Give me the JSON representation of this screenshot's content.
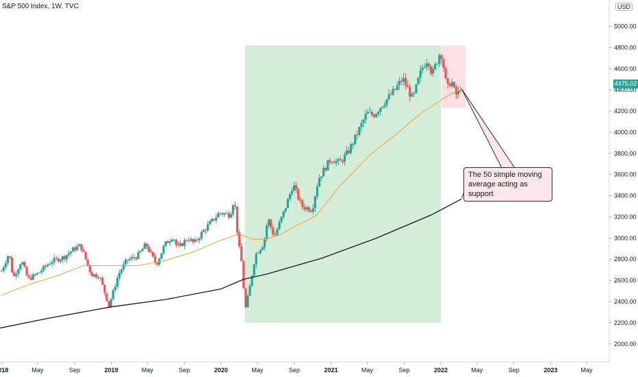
{
  "header": {
    "title": "S&P 500 Index, 1W, TVC",
    "currency": "USD"
  },
  "last_price_label": "4475.02",
  "annotation": {
    "text": "The 50 simple moving average acting as support"
  },
  "colors": {
    "up": "#26a69a",
    "down": "#ef5350",
    "sma50": "#f7a534",
    "sma200": "#131722",
    "green_zone": "#d4edd9",
    "red_zone": "#fbe1e3",
    "axis": "#2a2e39"
  },
  "chart_data": {
    "type": "candlestick",
    "title": "S&P 500 Index, 1W, TVC",
    "yticks": [
      2000,
      2200,
      2400,
      2600,
      2800,
      3000,
      3200,
      3400,
      3600,
      3800,
      4000,
      4200,
      4400,
      4600,
      4800,
      5000
    ],
    "ytick_labels": [
      "2000.00",
      "2200.00",
      "2400.00",
      "2600.00",
      "2800.00",
      "3000.00",
      "3200.00",
      "3400.00",
      "3600.00",
      "3800.00",
      "4000.00",
      "4200.00",
      "4400.00",
      "4600.00",
      "4800.00",
      "5000.00"
    ],
    "ylim": [
      1830,
      5250
    ],
    "xlim": [
      "2017-12-27",
      "2023-07-15"
    ],
    "xticks": [
      {
        "date": "2018-01-01",
        "label": "2018",
        "year": true
      },
      {
        "date": "2018-05-01",
        "label": "May",
        "year": false
      },
      {
        "date": "2018-09-01",
        "label": "Sep",
        "year": false
      },
      {
        "date": "2019-01-01",
        "label": "2019",
        "year": true
      },
      {
        "date": "2019-05-01",
        "label": "May",
        "year": false
      },
      {
        "date": "2019-09-01",
        "label": "Sep",
        "year": false
      },
      {
        "date": "2020-01-01",
        "label": "2020",
        "year": true
      },
      {
        "date": "2020-05-01",
        "label": "May",
        "year": false
      },
      {
        "date": "2020-09-01",
        "label": "Sep",
        "year": false
      },
      {
        "date": "2021-01-01",
        "label": "2021",
        "year": true
      },
      {
        "date": "2021-05-01",
        "label": "May",
        "year": false
      },
      {
        "date": "2021-09-01",
        "label": "Sep",
        "year": false
      },
      {
        "date": "2022-01-01",
        "label": "2022",
        "year": true
      },
      {
        "date": "2022-05-01",
        "label": "May",
        "year": false
      },
      {
        "date": "2022-09-01",
        "label": "Sep",
        "year": false
      },
      {
        "date": "2023-01-01",
        "label": "2023",
        "year": true
      },
      {
        "date": "2023-05-01",
        "label": "May",
        "year": false
      }
    ],
    "close_path": [
      [
        "2018-01-01",
        2690
      ],
      [
        "2018-01-26",
        2860
      ],
      [
        "2018-02-09",
        2620
      ],
      [
        "2018-03-09",
        2790
      ],
      [
        "2018-03-30",
        2610
      ],
      [
        "2018-05-04",
        2670
      ],
      [
        "2018-06-15",
        2780
      ],
      [
        "2018-07-27",
        2820
      ],
      [
        "2018-08-31",
        2900
      ],
      [
        "2018-09-21",
        2930
      ],
      [
        "2018-10-26",
        2660
      ],
      [
        "2018-11-23",
        2640
      ],
      [
        "2018-12-24",
        2360
      ],
      [
        "2019-01-25",
        2660
      ],
      [
        "2019-02-22",
        2790
      ],
      [
        "2019-03-29",
        2830
      ],
      [
        "2019-04-26",
        2940
      ],
      [
        "2019-05-31",
        2750
      ],
      [
        "2019-06-28",
        2940
      ],
      [
        "2019-07-26",
        3020
      ],
      [
        "2019-08-09",
        2900
      ],
      [
        "2019-09-13",
        3000
      ],
      [
        "2019-10-04",
        2950
      ],
      [
        "2019-11-01",
        3060
      ],
      [
        "2019-12-27",
        3240
      ],
      [
        "2020-01-31",
        3220
      ],
      [
        "2020-02-14",
        3380
      ],
      [
        "2020-02-28",
        2950
      ],
      [
        "2020-03-13",
        2710
      ],
      [
        "2020-03-20",
        2300
      ],
      [
        "2020-04-03",
        2490
      ],
      [
        "2020-04-24",
        2840
      ],
      [
        "2020-05-22",
        2950
      ],
      [
        "2020-06-05",
        3190
      ],
      [
        "2020-06-26",
        3010
      ],
      [
        "2020-07-31",
        3270
      ],
      [
        "2020-08-28",
        3510
      ],
      [
        "2020-09-25",
        3300
      ],
      [
        "2020-10-30",
        3270
      ],
      [
        "2020-11-20",
        3560
      ],
      [
        "2020-12-31",
        3750
      ],
      [
        "2021-01-29",
        3710
      ],
      [
        "2021-02-26",
        3810
      ],
      [
        "2021-03-26",
        3970
      ],
      [
        "2021-04-30",
        4180
      ],
      [
        "2021-05-21",
        4160
      ],
      [
        "2021-06-25",
        4280
      ],
      [
        "2021-07-30",
        4390
      ],
      [
        "2021-08-27",
        4510
      ],
      [
        "2021-09-30",
        4310
      ],
      [
        "2021-10-29",
        4600
      ],
      [
        "2021-11-19",
        4700
      ],
      [
        "2021-12-03",
        4540
      ],
      [
        "2021-12-31",
        4770
      ],
      [
        "2022-01-07",
        4680
      ],
      [
        "2022-01-21",
        4400
      ],
      [
        "2022-02-04",
        4500
      ],
      [
        "2022-02-18",
        4350
      ],
      [
        "2022-03-04",
        4380
      ],
      [
        "2022-03-11",
        4475
      ]
    ],
    "sma50": [
      [
        "2018-01-01",
        2460
      ],
      [
        "2018-04-01",
        2560
      ],
      [
        "2018-07-01",
        2640
      ],
      [
        "2018-10-01",
        2740
      ],
      [
        "2019-01-01",
        2740
      ],
      [
        "2019-04-01",
        2740
      ],
      [
        "2019-07-01",
        2790
      ],
      [
        "2019-10-01",
        2870
      ],
      [
        "2020-01-01",
        2980
      ],
      [
        "2020-03-01",
        3040
      ],
      [
        "2020-04-15",
        2990
      ],
      [
        "2020-06-01",
        2990
      ],
      [
        "2020-07-15",
        3030
      ],
      [
        "2020-09-01",
        3110
      ],
      [
        "2020-10-15",
        3170
      ],
      [
        "2020-11-15",
        3220
      ],
      [
        "2020-12-15",
        3330
      ],
      [
        "2021-02-01",
        3500
      ],
      [
        "2021-03-15",
        3620
      ],
      [
        "2021-05-01",
        3760
      ],
      [
        "2021-06-15",
        3870
      ],
      [
        "2021-08-01",
        3970
      ],
      [
        "2021-09-15",
        4080
      ],
      [
        "2021-11-01",
        4190
      ],
      [
        "2021-12-15",
        4270
      ],
      [
        "2022-02-01",
        4360
      ],
      [
        "2022-03-11",
        4410
      ]
    ],
    "sma200": [
      [
        "2017-12-27",
        2150
      ],
      [
        "2018-06-01",
        2240
      ],
      [
        "2019-01-01",
        2350
      ],
      [
        "2019-07-01",
        2420
      ],
      [
        "2020-01-01",
        2520
      ],
      [
        "2020-03-15",
        2610
      ],
      [
        "2020-06-01",
        2660
      ],
      [
        "2020-12-01",
        2810
      ],
      [
        "2021-06-01",
        3000
      ],
      [
        "2021-12-01",
        3220
      ],
      [
        "2022-03-11",
        3370
      ]
    ],
    "zones": [
      {
        "from": "2020-03-20",
        "to": "2022-01-01",
        "low": 2200,
        "high": 4820,
        "kind": "green"
      },
      {
        "from": "2022-01-03",
        "to": "2022-03-25",
        "low": 4230,
        "high": 4820,
        "kind": "red"
      }
    ],
    "callout_target": {
      "date": "2022-03-11",
      "value": 4410
    },
    "callout_sma200_target": {
      "date": "2022-03-11",
      "value": 3380
    }
  }
}
